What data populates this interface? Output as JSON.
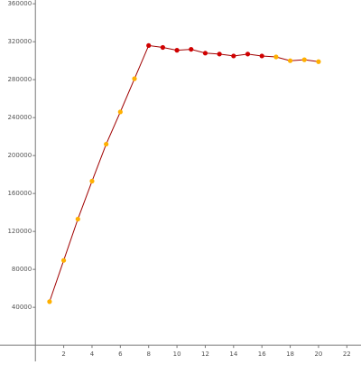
{
  "chart_data": {
    "type": "line",
    "x": [
      1,
      2,
      3,
      4,
      5,
      6,
      7,
      8,
      9,
      10,
      11,
      12,
      13,
      14,
      15,
      16,
      17,
      18,
      19,
      20
    ],
    "series": [
      {
        "color": "#a00000",
        "values": [
          46000,
          89500,
          133000,
          173000,
          212000,
          246000,
          281000,
          316000,
          314000,
          311000,
          312000,
          308000,
          307000,
          305000,
          307000,
          305000,
          304000,
          300000,
          301000,
          299000
        ],
        "point_colors": [
          "#ffb000",
          "#ffb000",
          "#ffb000",
          "#ffb000",
          "#ffb000",
          "#ffb000",
          "#ffb000",
          "#d00000",
          "#d00000",
          "#d00000",
          "#d00000",
          "#d00000",
          "#d00000",
          "#d00000",
          "#d00000",
          "#d00000",
          "#ffb000",
          "#ffb000",
          "#ffb000",
          "#ffb000"
        ]
      }
    ],
    "xlim": [
      -2.5,
      23
    ],
    "ylim": [
      -17000,
      364000
    ],
    "xticks": [
      2,
      4,
      6,
      8,
      10,
      12,
      14,
      16,
      18,
      20,
      22
    ],
    "yticks": [
      40000,
      80000,
      120000,
      160000,
      200000,
      240000,
      280000,
      320000,
      360000
    ],
    "grid": false
  }
}
